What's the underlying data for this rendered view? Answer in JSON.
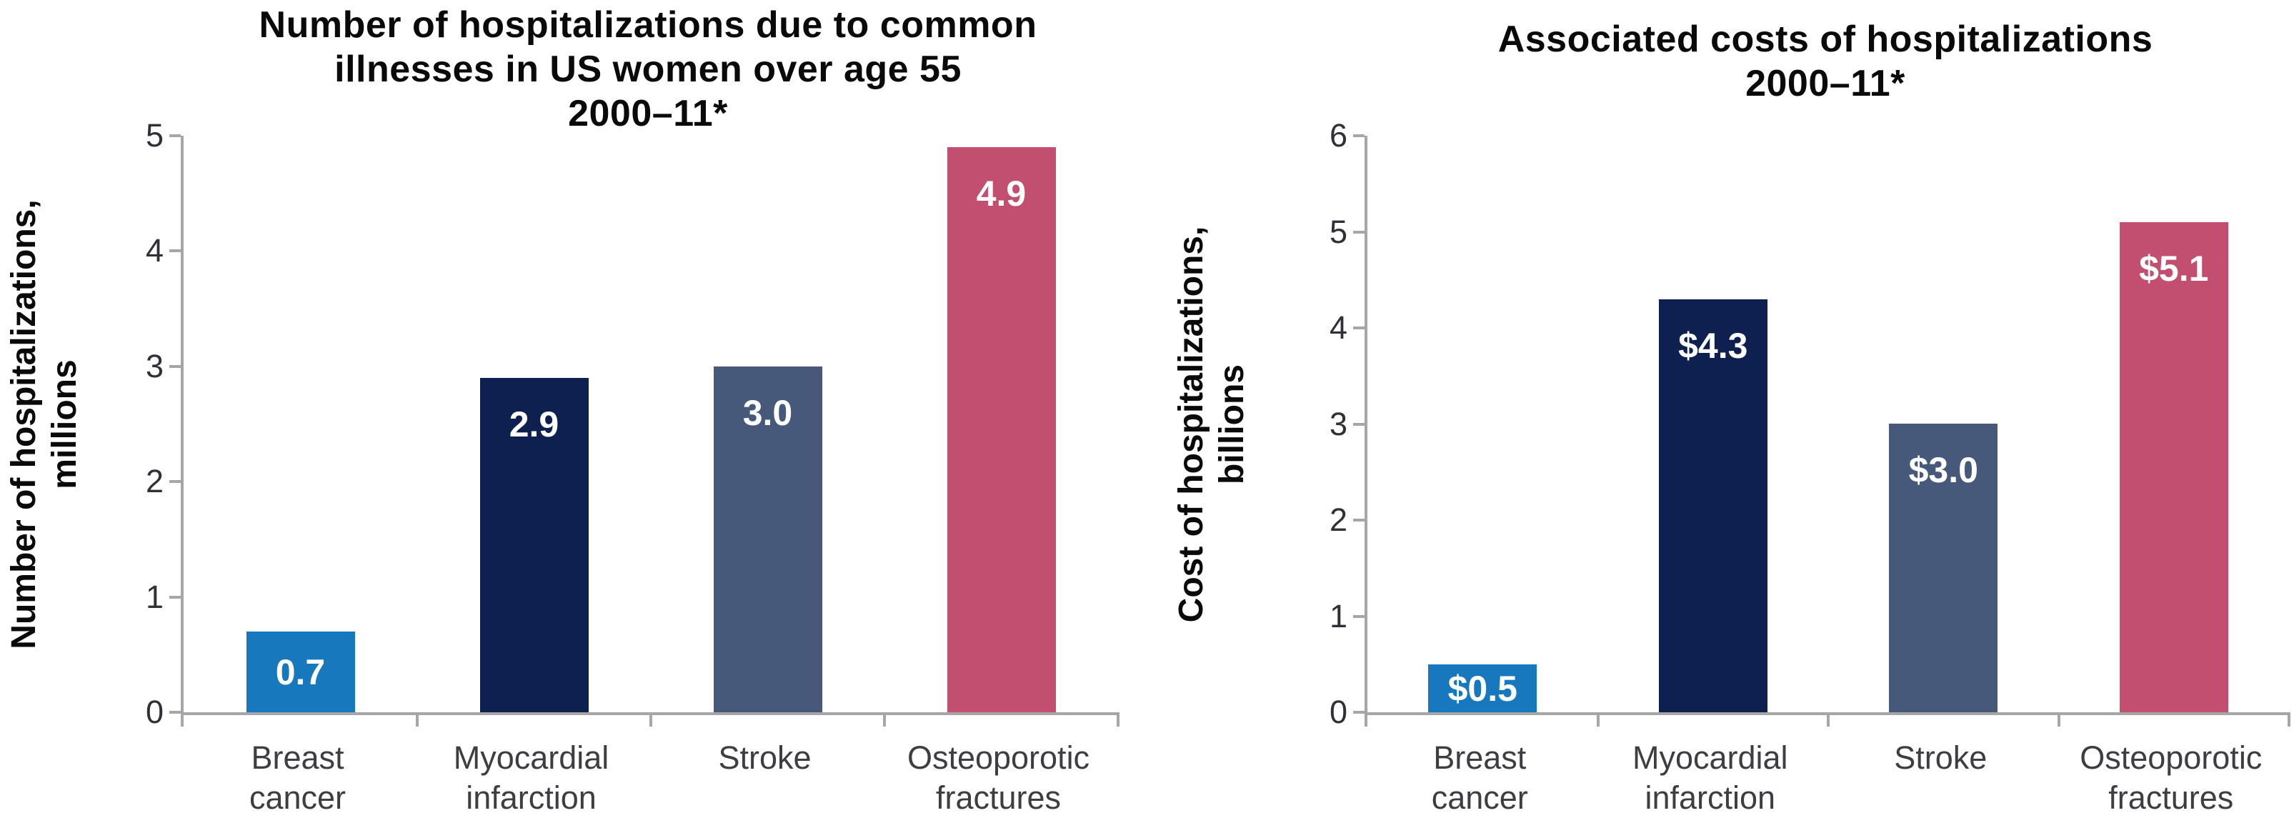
{
  "figure": {
    "background_color": "#ffffff",
    "axis_color": "#a6a6a6",
    "title_color": "#0a0a0a",
    "tick_label_color": "#303038",
    "category_label_color": "#3d3d44",
    "bar_label_color": "#ffffff"
  },
  "chart_data": [
    {
      "type": "bar",
      "title": [
        "Number of hospitalizations due to common",
        "illnesses in US women over age 55",
        "2000–11*"
      ],
      "ylabel": [
        "Number of hospitalizations,",
        "millions"
      ],
      "xlabel": "",
      "categories": [
        [
          "Breast",
          "cancer"
        ],
        [
          "Myocardial",
          "infarction"
        ],
        [
          "Stroke"
        ],
        [
          "Osteoporotic",
          "fractures"
        ]
      ],
      "values": [
        0.7,
        2.9,
        3.0,
        4.9
      ],
      "value_labels": [
        "0.7",
        "2.9",
        "3.0",
        "4.9"
      ],
      "bar_colors": [
        "#1878be",
        "#0d2050",
        "#47597a",
        "#c24f6f"
      ],
      "yticks": [
        0,
        1,
        2,
        3,
        4,
        5
      ],
      "ylim": [
        0,
        5
      ],
      "grid": false,
      "legend_position": "none"
    },
    {
      "type": "bar",
      "title": [
        "Associated costs of hospitalizations",
        "2000–11*"
      ],
      "ylabel": [
        "Cost of hospitalizations,",
        "billions"
      ],
      "xlabel": "",
      "categories": [
        [
          "Breast",
          "cancer"
        ],
        [
          "Myocardial",
          "infarction"
        ],
        [
          "Stroke"
        ],
        [
          "Osteoporotic",
          "fractures"
        ]
      ],
      "values": [
        0.5,
        4.3,
        3.0,
        5.1
      ],
      "value_labels": [
        "$0.5",
        "$4.3",
        "$3.0",
        "$5.1"
      ],
      "bar_colors": [
        "#1878be",
        "#0d2050",
        "#47597a",
        "#c24f6f"
      ],
      "yticks": [
        0,
        1,
        2,
        3,
        4,
        5,
        6
      ],
      "ylim": [
        0,
        6
      ],
      "grid": false,
      "legend_position": "none"
    }
  ]
}
